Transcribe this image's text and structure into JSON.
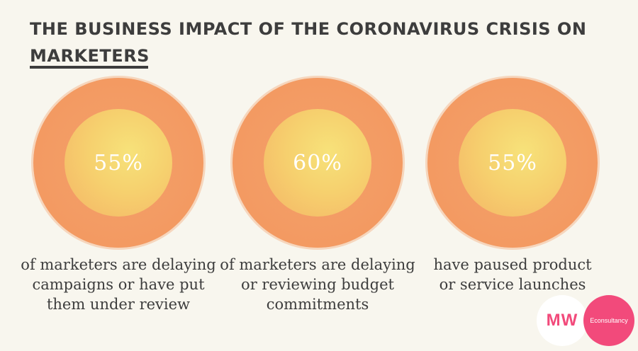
{
  "title": {
    "line1": "THE BUSINESS IMPACT OF THE CORONAVIRUS CRISIS ON",
    "line2": "MARKETERS"
  },
  "stats": [
    {
      "value": "55%",
      "caption": "of marketers are delaying\ncampaigns or have put\nthem under review"
    },
    {
      "value": "60%",
      "caption": "of marketers are delaying\nor reviewing budget\ncommitments"
    },
    {
      "value": "55%",
      "caption": "have paused product\nor service launches"
    }
  ],
  "logos": {
    "mw": "MW",
    "econsultancy": "Econsultancy"
  },
  "colors": {
    "background": "#f8f6ee",
    "outer_circle": "#f39a62",
    "inner_circle": "#f7e27a",
    "title_text": "#3d3d3d",
    "brand_pink": "#f24a7b"
  }
}
